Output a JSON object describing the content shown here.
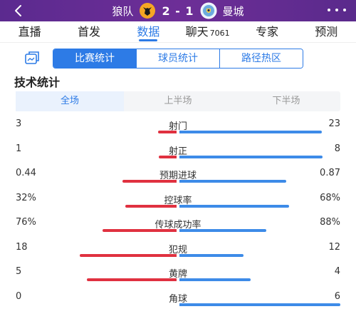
{
  "header": {
    "home_team": "狼队",
    "away_team": "曼城",
    "score": "2 - 1",
    "home_crest_icon": "wolves-crest-icon",
    "away_crest_icon": "man-city-crest-icon"
  },
  "main_tabs": [
    {
      "label": "直播",
      "count": "",
      "active": false
    },
    {
      "label": "首发",
      "count": "",
      "active": false
    },
    {
      "label": "数据",
      "count": "",
      "active": true
    },
    {
      "label": "聊天",
      "count": "7061",
      "active": false
    },
    {
      "label": "专家",
      "count": "",
      "active": false
    },
    {
      "label": "预测",
      "count": "",
      "active": false
    }
  ],
  "sub_tabs": [
    {
      "label": "比赛统计",
      "active": true
    },
    {
      "label": "球员统计",
      "active": false
    },
    {
      "label": "路径热区",
      "active": false
    }
  ],
  "section_title": "技术统计",
  "period_tabs": [
    {
      "label": "全场",
      "active": true
    },
    {
      "label": "上半场",
      "active": false
    },
    {
      "label": "下半场",
      "active": false
    }
  ],
  "stats": [
    {
      "label": "射门",
      "home": "3",
      "away": "23",
      "home_share": 0.115,
      "away_share": 0.885
    },
    {
      "label": "射正",
      "home": "1",
      "away": "8",
      "home_share": 0.111,
      "away_share": 0.889
    },
    {
      "label": "预期进球",
      "home": "0.44",
      "away": "0.87",
      "home_share": 0.336,
      "away_share": 0.664
    },
    {
      "label": "控球率",
      "home": "32%",
      "away": "68%",
      "home_share": 0.32,
      "away_share": 0.68
    },
    {
      "label": "传球成功率",
      "home": "76%",
      "away": "88%",
      "home_share": 0.46,
      "away_share": 0.54
    },
    {
      "label": "犯规",
      "home": "18",
      "away": "12",
      "home_share": 0.6,
      "away_share": 0.4
    },
    {
      "label": "黄牌",
      "home": "5",
      "away": "4",
      "home_share": 0.556,
      "away_share": 0.444
    },
    {
      "label": "角球",
      "home": "0",
      "away": "6",
      "home_share": 0.0,
      "away_share": 1.0
    }
  ],
  "colors": {
    "header_purple": "#5b2a8f",
    "accent_blue": "#2d7be6",
    "home_bar": "#e03140",
    "away_bar": "#3d8be8"
  }
}
